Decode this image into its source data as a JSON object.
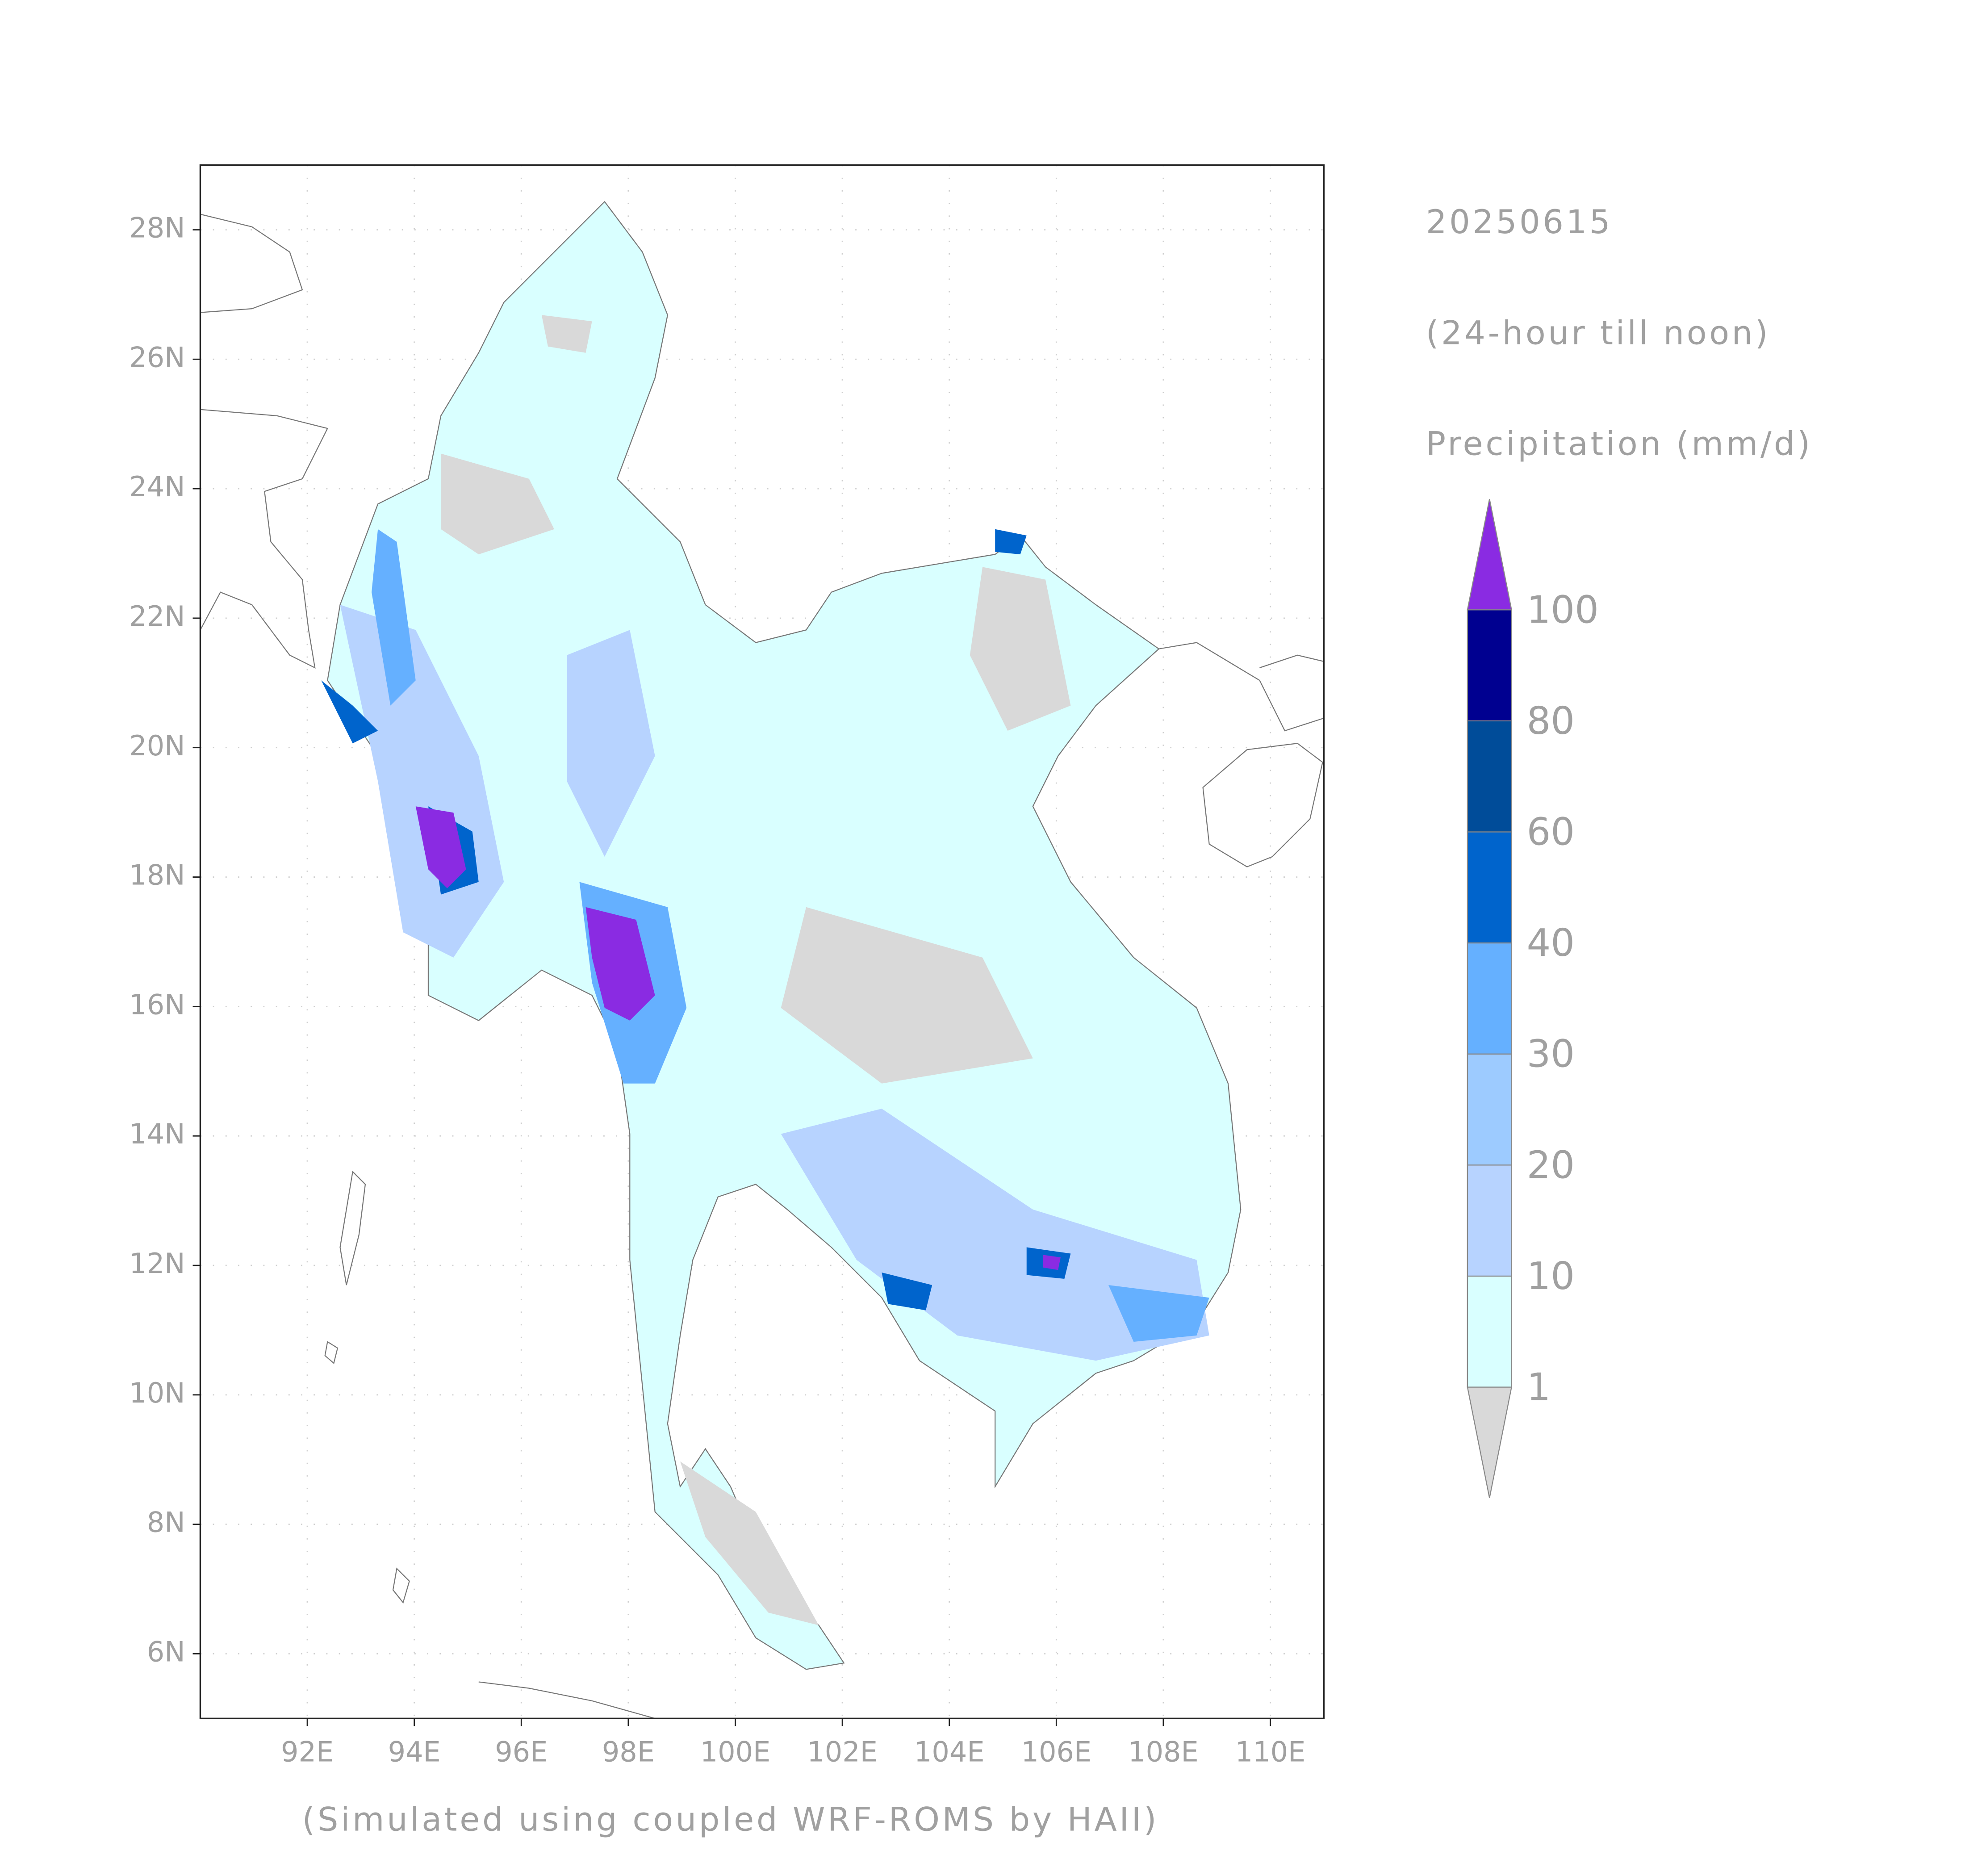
{
  "map": {
    "date": "20250615",
    "period": "(24-hour till noon)",
    "variable": "Precipitation (mm/d)",
    "footer": "(Simulated using coupled WRF-ROMS by HAII)",
    "lonlim": [
      90,
      111
    ],
    "latlim": [
      5,
      29
    ],
    "grid": true,
    "lon_ticks": [
      {
        "value": 92,
        "label": "92E"
      },
      {
        "value": 94,
        "label": "94E"
      },
      {
        "value": 96,
        "label": "96E"
      },
      {
        "value": 98,
        "label": "98E"
      },
      {
        "value": 100,
        "label": "100E"
      },
      {
        "value": 102,
        "label": "102E"
      },
      {
        "value": 104,
        "label": "104E"
      },
      {
        "value": 106,
        "label": "106E"
      },
      {
        "value": 108,
        "label": "108E"
      },
      {
        "value": 110,
        "label": "110E"
      }
    ],
    "lat_ticks": [
      {
        "value": 6,
        "label": "6N"
      },
      {
        "value": 8,
        "label": "8N"
      },
      {
        "value": 10,
        "label": "10N"
      },
      {
        "value": 12,
        "label": "12N"
      },
      {
        "value": 14,
        "label": "14N"
      },
      {
        "value": 16,
        "label": "16N"
      },
      {
        "value": 18,
        "label": "18N"
      },
      {
        "value": 20,
        "label": "20N"
      },
      {
        "value": 22,
        "label": "22N"
      },
      {
        "value": 24,
        "label": "24N"
      },
      {
        "value": 26,
        "label": "26N"
      },
      {
        "value": 28,
        "label": "28N"
      }
    ],
    "colorbar": {
      "levels": [
        1,
        10,
        20,
        30,
        40,
        60,
        80,
        100
      ],
      "colors": [
        "#d9d9d9",
        "#d9ffff",
        "#b7d3ff",
        "#9dcbff",
        "#65b0ff",
        "#0064cc",
        "#004c99",
        "#000090",
        "#8a2be2"
      ]
    }
  }
}
